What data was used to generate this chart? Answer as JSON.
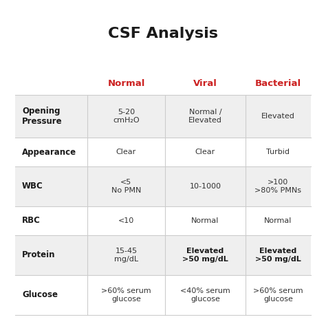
{
  "title": "CSF Analysis",
  "title_fontsize": 16,
  "title_fontweight": "bold",
  "bg_color": "#ffffff",
  "header_color": "#cc2222",
  "row_label_color": "#1a1a1a",
  "cell_text_color": "#333333",
  "bold_cell_color": "#1a1a1a",
  "row_bg_light": "#efefef",
  "row_bg_white": "#ffffff",
  "grid_line_color": "#cccccc",
  "headers": [
    "Normal",
    "Viral",
    "Bacterial"
  ],
  "rows": [
    {
      "label": "Opening\nPressure",
      "normal": "5-20\ncmH₂O",
      "viral": "Normal /\nElevated",
      "bacterial": "Elevated",
      "normal_bold": false,
      "viral_bold": false,
      "bacterial_bold": false
    },
    {
      "label": "Appearance",
      "normal": "Clear",
      "viral": "Clear",
      "bacterial": "Turbid",
      "normal_bold": false,
      "viral_bold": false,
      "bacterial_bold": false
    },
    {
      "label": "WBC",
      "normal": "<5\nNo PMN",
      "viral": "10-1000",
      "bacterial": ">100\n>80% PMNs",
      "normal_bold": false,
      "viral_bold": false,
      "bacterial_bold": false
    },
    {
      "label": "RBC",
      "normal": "<10",
      "viral": "Normal",
      "bacterial": "Normal",
      "normal_bold": false,
      "viral_bold": false,
      "bacterial_bold": false
    },
    {
      "label": "Protein",
      "normal": "15-45\nmg/dL",
      "viral": "Elevated\n>50 mg/dL",
      "bacterial": "Elevated\n>50 mg/dL",
      "normal_bold": false,
      "viral_bold": true,
      "bacterial_bold": true
    },
    {
      "label": "Glucose",
      "normal": ">60% serum\nglucose",
      "viral": "<40% serum\nglucose",
      "bacterial": ">60% serum\nglucose",
      "normal_bold": false,
      "viral_bold": false,
      "bacterial_bold": false
    }
  ]
}
